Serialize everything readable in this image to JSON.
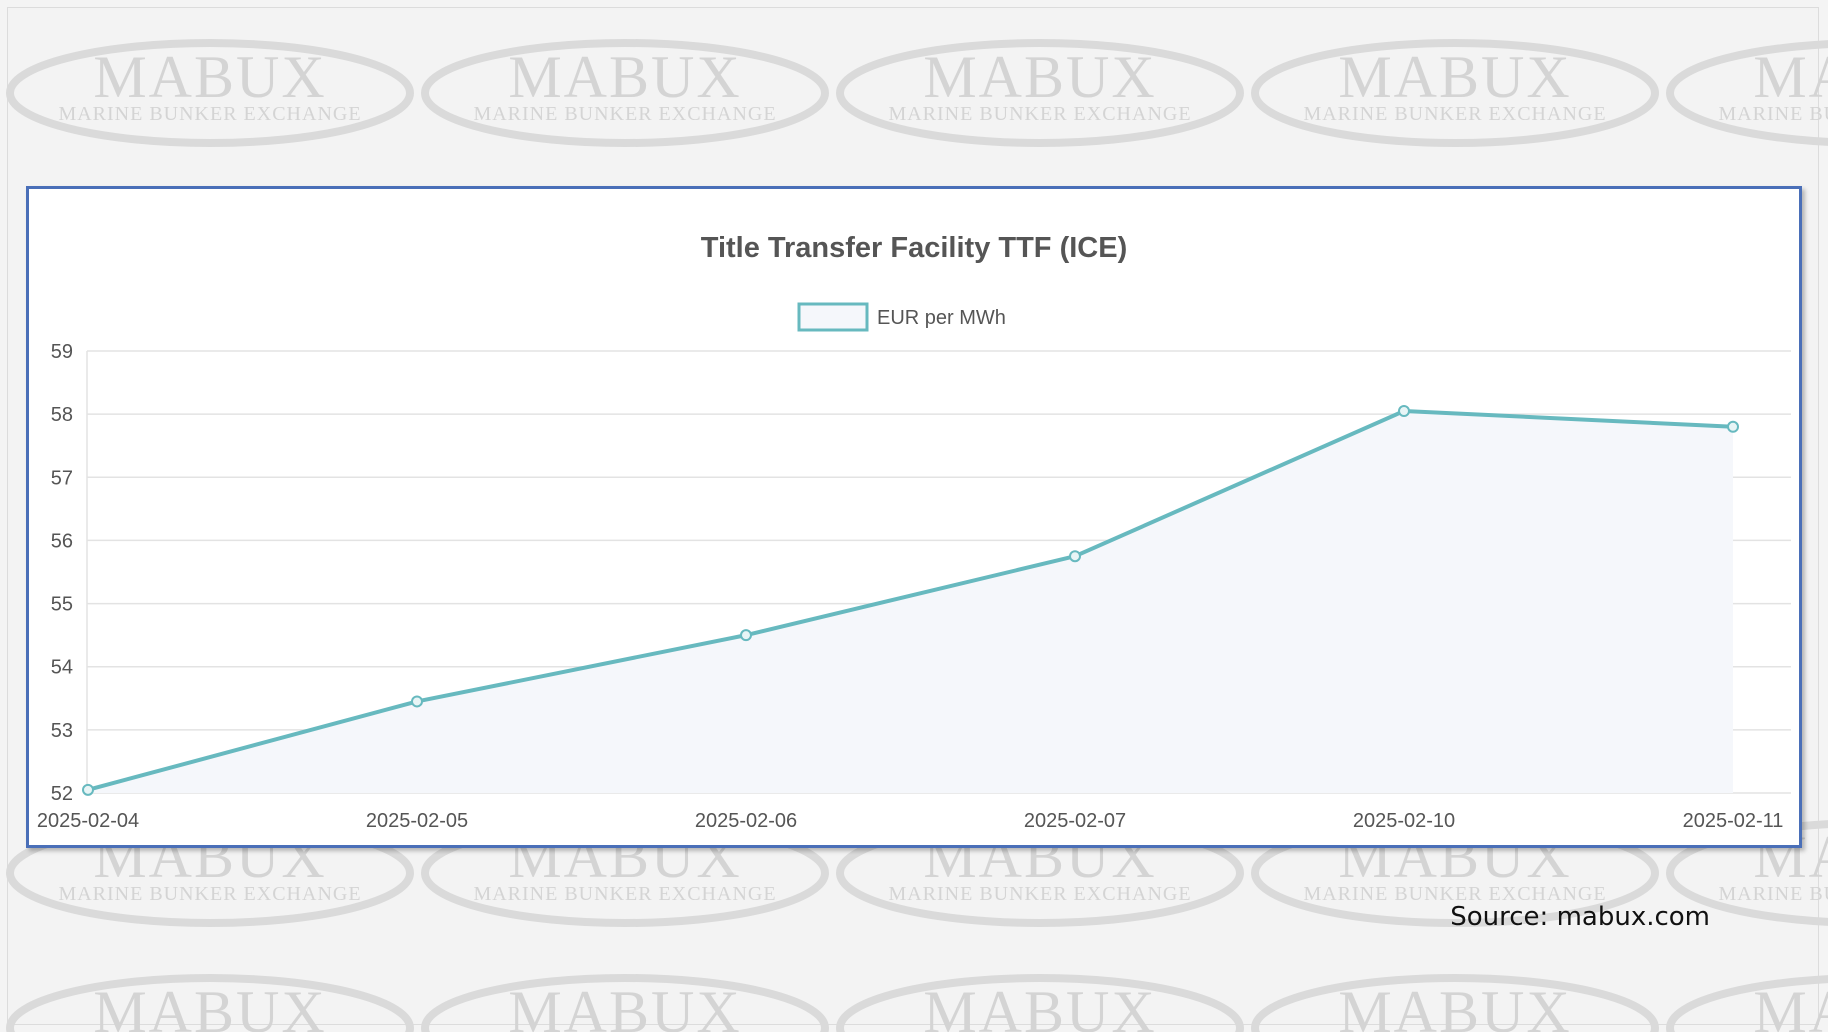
{
  "watermark": {
    "brand": "MABUX",
    "subtitle": "MARINE BUNKER EXCHANGE"
  },
  "source_note": "Source: mabux.com",
  "colors": {
    "line": "#67b9bf",
    "fill": "#f5f7fb",
    "frame": "#4a6fb8",
    "grid": "#e3e3e3"
  },
  "chart_data": {
    "type": "line",
    "title": "Title Transfer Facility TTF (ICE)",
    "categories": [
      "2025-02-04",
      "2025-02-05",
      "2025-02-06",
      "2025-02-07",
      "2025-02-10",
      "2025-02-11"
    ],
    "series": [
      {
        "name": "EUR per MWh",
        "values": [
          52.05,
          53.45,
          54.5,
          55.75,
          58.05,
          57.8
        ]
      }
    ],
    "yticks": [
      52,
      53,
      54,
      55,
      56,
      57,
      58,
      59
    ],
    "ylim": [
      52,
      59
    ],
    "grid": true,
    "legend": "top-center"
  }
}
